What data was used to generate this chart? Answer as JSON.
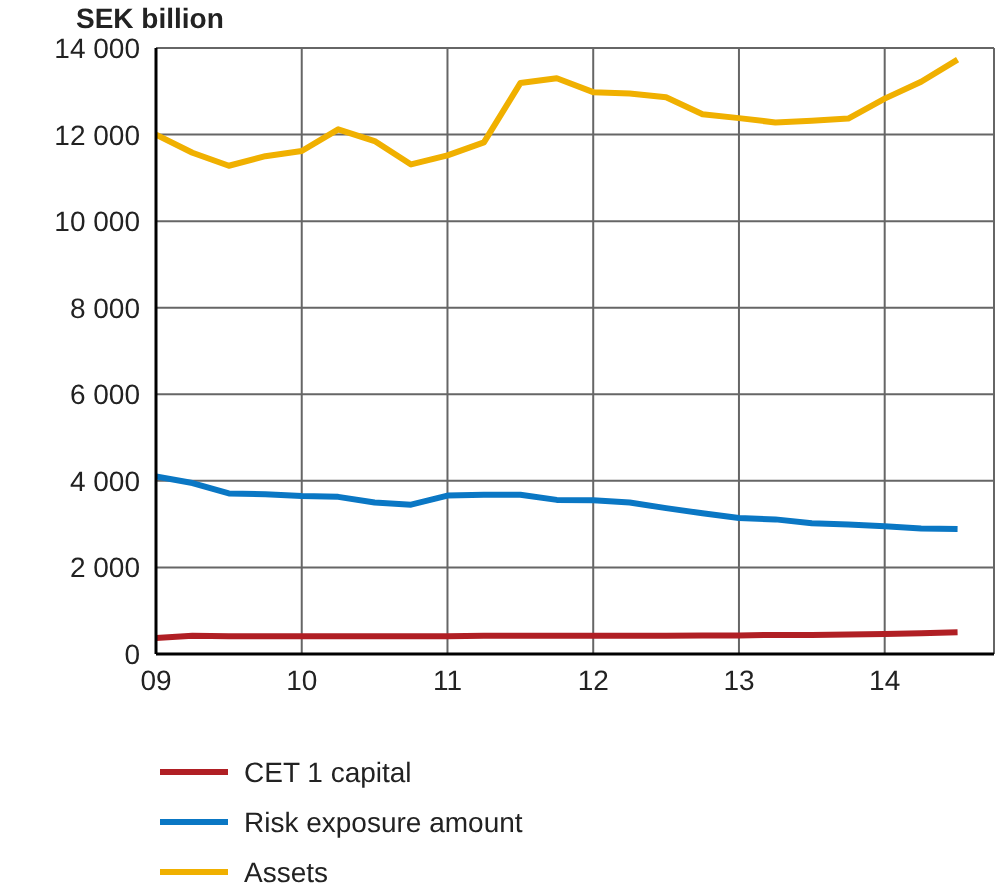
{
  "chart_data": {
    "type": "line",
    "ylabel": "SEK billion",
    "x": [
      9,
      9.25,
      9.5,
      9.75,
      10,
      10.25,
      10.5,
      10.75,
      11,
      11.25,
      11.5,
      11.75,
      12,
      12.25,
      12.5,
      12.75,
      13,
      13.25,
      13.5,
      13.75,
      14,
      14.25,
      14.5
    ],
    "series": [
      {
        "name": "CET 1 capital",
        "color": "#b01f24",
        "values": [
          370,
          420,
          410,
          410,
          410,
          410,
          410,
          410,
          410,
          420,
          420,
          420,
          420,
          420,
          420,
          430,
          430,
          440,
          440,
          450,
          460,
          480,
          500
        ]
      },
      {
        "name": "Risk exposure amount",
        "color": "#0a77c4",
        "values": [
          4100,
          3950,
          3710,
          3690,
          3650,
          3630,
          3500,
          3450,
          3660,
          3680,
          3680,
          3560,
          3550,
          3500,
          3370,
          3250,
          3140,
          3110,
          3020,
          2990,
          2950,
          2900,
          2890
        ]
      },
      {
        "name": "Assets",
        "color": "#f0b000",
        "values": [
          12000,
          11580,
          11280,
          11500,
          11620,
          12120,
          11850,
          11310,
          11520,
          11820,
          13190,
          13300,
          12980,
          12950,
          12860,
          12470,
          12380,
          12280,
          12320,
          12370,
          12830,
          13220,
          13730
        ]
      }
    ],
    "xlim": [
      9,
      14.75
    ],
    "xticks": [
      {
        "value": 9,
        "label": "09"
      },
      {
        "value": 10,
        "label": "10"
      },
      {
        "value": 11,
        "label": "11"
      },
      {
        "value": 12,
        "label": "12"
      },
      {
        "value": 13,
        "label": "13"
      },
      {
        "value": 14,
        "label": "14"
      }
    ],
    "ylim": [
      0,
      14000
    ],
    "yticks": [
      0,
      {
        "value": 2000,
        "label": "2 000"
      },
      {
        "value": 4000,
        "label": "4 000"
      },
      {
        "value": 6000,
        "label": "6 000"
      },
      {
        "value": 8000,
        "label": "8 000"
      },
      {
        "value": 10000,
        "label": "10 000"
      },
      {
        "value": 12000,
        "label": "12 000"
      },
      {
        "value": 14000,
        "label": "14 000"
      }
    ],
    "grid": true,
    "legend": "bottom",
    "marker": "none",
    "line_style": "solid"
  }
}
